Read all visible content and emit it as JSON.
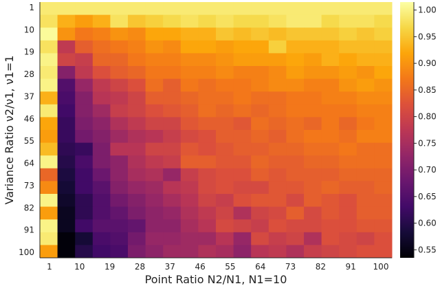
{
  "chart_data": {
    "type": "heatmap",
    "xlabel": "Point Ratio N2/N1, N1=10",
    "ylabel": "Variance Ratio ν2/ν1, ν1=1",
    "x_tick_labels": [
      "1",
      "10",
      "19",
      "28",
      "37",
      "46",
      "55",
      "64",
      "73",
      "82",
      "91",
      "100"
    ],
    "y_tick_labels": [
      "1",
      "10",
      "19",
      "28",
      "37",
      "46",
      "55",
      "64",
      "73",
      "82",
      "91",
      "100"
    ],
    "x": [
      1,
      6,
      11,
      16,
      21,
      26,
      31,
      36,
      41,
      46,
      51,
      56,
      61,
      66,
      71,
      76,
      81,
      86,
      91,
      96
    ],
    "y": [
      1,
      6,
      11,
      16,
      21,
      26,
      31,
      36,
      41,
      46,
      51,
      56,
      61,
      66,
      71,
      76,
      81,
      86,
      91,
      96
    ],
    "y_direction": "top-to-bottom",
    "colormap": "inferno",
    "clim": [
      0.535,
      1.015
    ],
    "colorbar_ticks": [
      "0.55",
      "0.60",
      "0.65",
      "0.70",
      "0.75",
      "0.80",
      "0.85",
      "0.90",
      "0.95",
      "1.00"
    ],
    "values": [
      [
        0.99,
        0.99,
        0.99,
        0.99,
        0.99,
        0.99,
        0.99,
        0.99,
        0.99,
        0.99,
        0.99,
        0.99,
        0.99,
        0.99,
        0.99,
        0.99,
        0.99,
        0.99,
        0.99,
        0.99
      ],
      [
        0.98,
        0.93,
        0.91,
        0.93,
        0.98,
        0.95,
        0.96,
        0.97,
        0.98,
        0.97,
        0.98,
        0.97,
        0.97,
        0.98,
        0.99,
        0.99,
        0.97,
        0.98,
        0.98,
        0.97
      ],
      [
        1.01,
        0.9,
        0.87,
        0.88,
        0.9,
        0.89,
        0.92,
        0.92,
        0.93,
        0.93,
        0.95,
        0.94,
        0.95,
        0.94,
        0.95,
        0.95,
        0.95,
        0.96,
        0.95,
        0.96
      ],
      [
        0.98,
        0.78,
        0.84,
        0.86,
        0.87,
        0.88,
        0.9,
        0.89,
        0.92,
        0.92,
        0.91,
        0.92,
        0.92,
        0.96,
        0.93,
        0.93,
        0.93,
        0.94,
        0.94,
        0.94
      ],
      [
        1.0,
        0.8,
        0.79,
        0.85,
        0.85,
        0.87,
        0.88,
        0.88,
        0.89,
        0.89,
        0.9,
        0.91,
        0.91,
        0.91,
        0.92,
        0.91,
        0.93,
        0.92,
        0.93,
        0.93
      ],
      [
        0.99,
        0.71,
        0.78,
        0.82,
        0.84,
        0.85,
        0.87,
        0.87,
        0.88,
        0.88,
        0.89,
        0.88,
        0.88,
        0.89,
        0.91,
        0.9,
        0.9,
        0.91,
        0.9,
        0.92
      ],
      [
        1.0,
        0.65,
        0.73,
        0.78,
        0.8,
        0.82,
        0.86,
        0.84,
        0.87,
        0.86,
        0.87,
        0.87,
        0.88,
        0.89,
        0.89,
        0.88,
        0.88,
        0.9,
        0.91,
        0.9
      ],
      [
        0.93,
        0.64,
        0.71,
        0.77,
        0.78,
        0.8,
        0.84,
        0.84,
        0.85,
        0.86,
        0.86,
        0.87,
        0.86,
        0.86,
        0.87,
        0.87,
        0.88,
        0.88,
        0.89,
        0.89
      ],
      [
        0.99,
        0.63,
        0.71,
        0.74,
        0.79,
        0.8,
        0.82,
        0.83,
        0.84,
        0.86,
        0.85,
        0.86,
        0.85,
        0.86,
        0.87,
        0.87,
        0.87,
        0.87,
        0.88,
        0.88
      ],
      [
        0.92,
        0.62,
        0.7,
        0.72,
        0.76,
        0.78,
        0.8,
        0.8,
        0.83,
        0.84,
        0.84,
        0.83,
        0.86,
        0.85,
        0.86,
        0.85,
        0.87,
        0.85,
        0.87,
        0.88
      ],
      [
        0.91,
        0.62,
        0.69,
        0.71,
        0.74,
        0.76,
        0.77,
        0.79,
        0.81,
        0.82,
        0.84,
        0.84,
        0.85,
        0.84,
        0.86,
        0.87,
        0.87,
        0.86,
        0.88,
        0.88
      ],
      [
        0.94,
        0.61,
        0.62,
        0.7,
        0.77,
        0.77,
        0.8,
        0.8,
        0.83,
        0.82,
        0.83,
        0.84,
        0.84,
        0.85,
        0.85,
        0.86,
        0.86,
        0.87,
        0.86,
        0.86
      ],
      [
        1.0,
        0.6,
        0.64,
        0.7,
        0.72,
        0.76,
        0.78,
        0.79,
        0.84,
        0.84,
        0.83,
        0.83,
        0.85,
        0.84,
        0.84,
        0.85,
        0.85,
        0.86,
        0.86,
        0.86
      ],
      [
        0.85,
        0.59,
        0.63,
        0.68,
        0.72,
        0.75,
        0.76,
        0.73,
        0.79,
        0.81,
        0.82,
        0.82,
        0.84,
        0.83,
        0.84,
        0.84,
        0.84,
        0.85,
        0.85,
        0.85
      ],
      [
        0.89,
        0.58,
        0.63,
        0.66,
        0.71,
        0.73,
        0.74,
        0.77,
        0.78,
        0.81,
        0.82,
        0.81,
        0.81,
        0.83,
        0.83,
        0.84,
        0.85,
        0.84,
        0.84,
        0.85
      ],
      [
        1.0,
        0.57,
        0.61,
        0.65,
        0.69,
        0.71,
        0.73,
        0.75,
        0.77,
        0.8,
        0.79,
        0.82,
        0.83,
        0.83,
        0.81,
        0.84,
        0.83,
        0.82,
        0.84,
        0.84
      ],
      [
        0.91,
        0.56,
        0.61,
        0.65,
        0.67,
        0.7,
        0.72,
        0.73,
        0.76,
        0.78,
        0.8,
        0.76,
        0.8,
        0.81,
        0.84,
        0.81,
        0.83,
        0.82,
        0.84,
        0.84
      ],
      [
        1.0,
        0.56,
        0.63,
        0.66,
        0.66,
        0.67,
        0.72,
        0.72,
        0.75,
        0.77,
        0.81,
        0.8,
        0.79,
        0.82,
        0.81,
        0.81,
        0.82,
        0.82,
        0.83,
        0.83
      ],
      [
        0.99,
        0.54,
        0.58,
        0.64,
        0.65,
        0.69,
        0.73,
        0.73,
        0.74,
        0.74,
        0.77,
        0.73,
        0.81,
        0.79,
        0.8,
        0.76,
        0.82,
        0.81,
        0.8,
        0.82
      ],
      [
        0.91,
        0.54,
        0.6,
        0.63,
        0.64,
        0.7,
        0.72,
        0.74,
        0.74,
        0.76,
        0.75,
        0.72,
        0.77,
        0.78,
        0.76,
        0.79,
        0.8,
        0.81,
        0.82,
        0.82
      ]
    ]
  }
}
